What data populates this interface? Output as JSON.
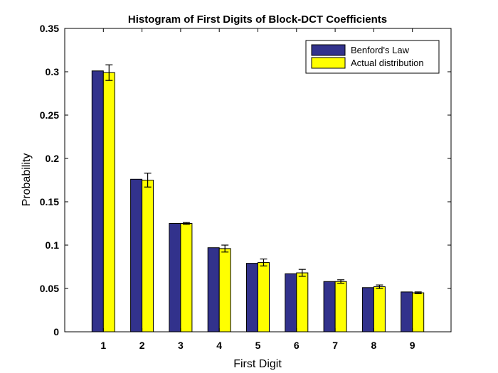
{
  "chart_data": {
    "type": "bar",
    "title": "Histogram of First Digits of Block-DCT Coefficients",
    "xlabel": "First Digit",
    "ylabel": "Probability",
    "categories": [
      "1",
      "2",
      "3",
      "4",
      "5",
      "6",
      "7",
      "8",
      "9"
    ],
    "ylim": [
      0,
      0.35
    ],
    "yticks": [
      "0",
      "0.05",
      "0.1",
      "0.15",
      "0.2",
      "0.25",
      "0.3",
      "0.35"
    ],
    "series": [
      {
        "name": "Benford's Law",
        "color": "#32328c",
        "values": [
          0.301,
          0.176,
          0.125,
          0.097,
          0.079,
          0.067,
          0.058,
          0.051,
          0.046
        ]
      },
      {
        "name": "Actual distribution",
        "color": "#ffff00",
        "values": [
          0.299,
          0.175,
          0.125,
          0.096,
          0.08,
          0.068,
          0.058,
          0.052,
          0.045
        ],
        "error": [
          0.009,
          0.008,
          0.001,
          0.004,
          0.004,
          0.004,
          0.002,
          0.002,
          0.001
        ]
      }
    ],
    "legend_position": "top-right",
    "grid": false
  }
}
